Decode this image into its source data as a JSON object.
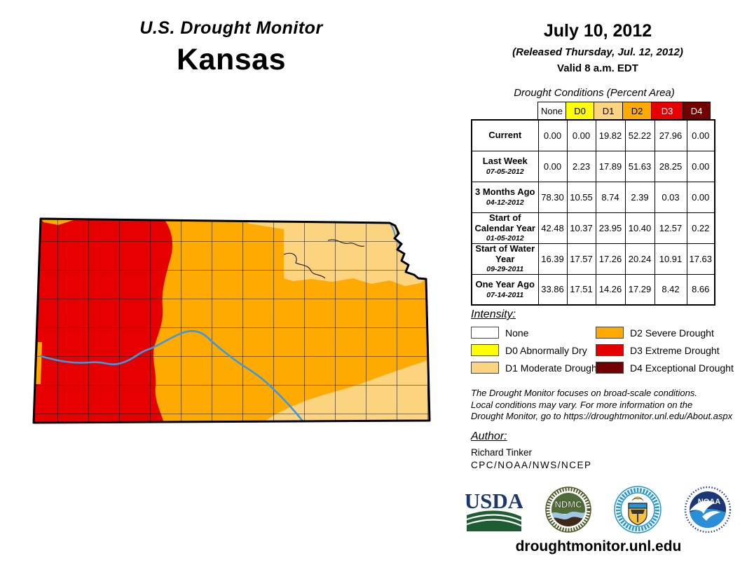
{
  "header": {
    "title": "U.S. Drought Monitor",
    "state": "Kansas"
  },
  "date_block": {
    "date": "July 10, 2012",
    "released": "(Released Thursday, Jul. 12, 2012)",
    "valid": "Valid 8 a.m. EDT"
  },
  "palette": {
    "none": "#FFFFFF",
    "d0": "#FFFF00",
    "d1": "#FCD37F",
    "d2": "#FFAA00",
    "d3": "#E60000",
    "d4": "#730000",
    "river": "#3C99E0"
  },
  "conditions_table": {
    "title": "Drought Conditions (Percent Area)",
    "columns": [
      "None",
      "D0",
      "D1",
      "D2",
      "D3",
      "D4"
    ],
    "column_colors": [
      "#FFFFFF",
      "#FFFF00",
      "#FCD37F",
      "#FFAA00",
      "#E60000",
      "#730000"
    ],
    "column_text_colors": [
      "#000000",
      "#000000",
      "#000000",
      "#000000",
      "#FFFFFF",
      "#FFFFFF"
    ],
    "rows": [
      {
        "label": "Current",
        "date": "",
        "values": [
          "0.00",
          "0.00",
          "19.82",
          "52.22",
          "27.96",
          "0.00"
        ]
      },
      {
        "label": "Last Week",
        "date": "07-05-2012",
        "values": [
          "0.00",
          "2.23",
          "17.89",
          "51.63",
          "28.25",
          "0.00"
        ]
      },
      {
        "label": "3 Months Ago",
        "date": "04-12-2012",
        "values": [
          "78.30",
          "10.55",
          "8.74",
          "2.39",
          "0.03",
          "0.00"
        ]
      },
      {
        "label": "Start of Calendar Year",
        "date": "01-05-2012",
        "values": [
          "42.48",
          "10.37",
          "23.95",
          "10.40",
          "12.57",
          "0.22"
        ]
      },
      {
        "label": "Start of Water Year",
        "date": "09-29-2011",
        "values": [
          "16.39",
          "17.57",
          "17.26",
          "20.24",
          "10.91",
          "17.63"
        ]
      },
      {
        "label": "One Year Ago",
        "date": "07-14-2011",
        "values": [
          "33.86",
          "17.51",
          "14.26",
          "17.29",
          "8.42",
          "8.66"
        ]
      }
    ]
  },
  "legend": {
    "title": "Intensity:",
    "items": [
      {
        "label": "None",
        "color": "#FFFFFF"
      },
      {
        "label": "D0 Abnormally Dry",
        "color": "#FFFF00"
      },
      {
        "label": "D1 Moderate Drought",
        "color": "#FCD37F"
      },
      {
        "label": "D2 Severe Drought",
        "color": "#FFAA00"
      },
      {
        "label": "D3 Extreme Drought",
        "color": "#E60000"
      },
      {
        "label": "D4 Exceptional Drought",
        "color": "#730000"
      }
    ]
  },
  "disclaimer": {
    "line1": "The Drought Monitor focuses on broad-scale conditions.",
    "line2": "Local conditions may vary. For more information on the",
    "line3": "Drought Monitor, go to https://droughtmonitor.unl.edu/About.aspx"
  },
  "author": {
    "title": "Author:",
    "name": "Richard Tinker",
    "org": "CPC/NOAA/NWS/NCEP"
  },
  "logos": [
    {
      "name": "USDA",
      "text": "USDA"
    },
    {
      "name": "National Drought Mitigation Center",
      "text": "NDMC"
    },
    {
      "name": "U.S. Department of Commerce",
      "text": ""
    },
    {
      "name": "NOAA",
      "text": "NOAA"
    }
  ],
  "footer": {
    "url": "droughtmonitor.unl.edu"
  },
  "map": {
    "state": "Kansas",
    "features": [
      "county boundaries",
      "Arkansas River",
      "Missouri River notch"
    ],
    "regions": [
      "D3 Extreme Drought (west)",
      "D2 Severe Drought (central)",
      "D1 Moderate Drought (northeast and southeast)"
    ]
  }
}
